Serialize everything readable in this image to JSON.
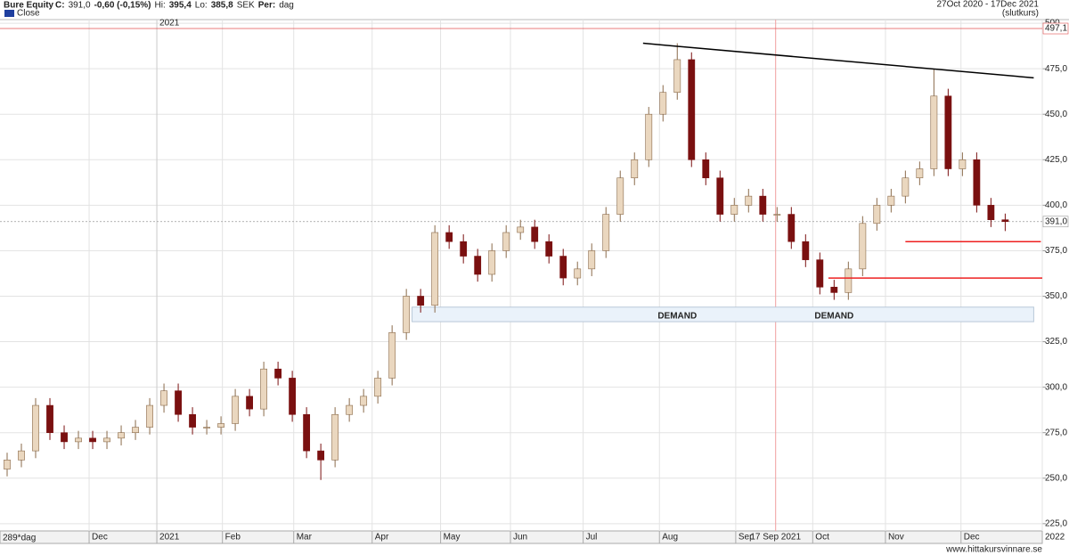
{
  "chart_data": {
    "type": "candlestick",
    "title": "Bure Equity",
    "header": [
      "C:",
      "391,0",
      "-0,60 (-0,15%)",
      "Hi:",
      "395,4",
      "Lo:",
      "385,8",
      "SEK",
      "Per:",
      "dag"
    ],
    "date_range": "27Oct 2020 - 17Dec 2021",
    "price_type": "(slutkurs)",
    "period_label": "289*dag",
    "footer": "www.hittakursvinnare.se",
    "up_color": "#ead7bf",
    "down_color": "#7a1010",
    "categories": [
      null,
      null,
      null,
      null,
      null,
      null,
      null,
      null,
      null,
      null,
      null,
      null,
      null,
      null,
      null,
      null,
      null,
      null,
      null,
      null,
      null,
      null,
      null,
      null,
      null,
      null,
      null,
      null,
      null,
      null,
      null,
      null,
      null,
      null,
      null,
      null,
      null,
      null,
      null,
      null,
      null,
      null,
      null,
      null,
      null,
      null,
      null,
      null,
      null,
      null,
      null,
      null,
      null,
      null,
      null,
      null,
      null,
      null,
      null,
      null,
      null,
      null,
      null,
      null,
      null,
      null,
      null,
      null,
      null,
      null,
      null
    ],
    "series": [
      {
        "name": "Close",
        "color": "#1f3f9f",
        "open": [
          255,
          260,
          265,
          290,
          275,
          270,
          272,
          270,
          272,
          275,
          278,
          290,
          298,
          285,
          278,
          278,
          280,
          295,
          288,
          310,
          305,
          285,
          265,
          260,
          285,
          290,
          295,
          305,
          330,
          350,
          345,
          385,
          380,
          372,
          362,
          375,
          385,
          388,
          380,
          372,
          360,
          365,
          375,
          395,
          415,
          425,
          450,
          462,
          480,
          425,
          415,
          395,
          400,
          405,
          395,
          395,
          380,
          370,
          355,
          352,
          365,
          390,
          400,
          405,
          415,
          420,
          460,
          420,
          425,
          400,
          392
        ],
        "high": [
          264,
          269,
          294,
          294,
          279,
          276,
          276,
          276,
          279,
          282,
          294,
          302,
          302,
          289,
          282,
          284,
          299,
          299,
          314,
          314,
          309,
          289,
          269,
          289,
          294,
          299,
          309,
          334,
          354,
          354,
          389,
          389,
          384,
          376,
          379,
          389,
          392,
          392,
          384,
          376,
          369,
          379,
          399,
          419,
          429,
          454,
          466,
          489,
          484,
          429,
          419,
          404,
          409,
          409,
          399,
          399,
          384,
          374,
          359,
          369,
          394,
          404,
          409,
          419,
          424,
          475,
          464,
          429,
          429,
          404,
          395.4
        ],
        "low": [
          251,
          256,
          261,
          271,
          266,
          266,
          266,
          266,
          268,
          271,
          274,
          286,
          281,
          274,
          274,
          274,
          276,
          284,
          284,
          301,
          281,
          261,
          249,
          256,
          281,
          286,
          291,
          301,
          326,
          341,
          341,
          376,
          368,
          358,
          358,
          371,
          381,
          376,
          368,
          356,
          356,
          361,
          371,
          391,
          411,
          421,
          446,
          458,
          421,
          411,
          391,
          391,
          396,
          391,
          391,
          376,
          366,
          351,
          348,
          348,
          361,
          386,
          396,
          401,
          411,
          416,
          416,
          416,
          396,
          388,
          385.8
        ],
        "close": [
          260,
          265,
          290,
          275,
          270,
          272,
          270,
          272,
          275,
          278,
          290,
          298,
          285,
          278,
          278,
          280,
          295,
          288,
          310,
          305,
          285,
          265,
          260,
          285,
          290,
          295,
          305,
          330,
          350,
          345,
          385,
          380,
          372,
          362,
          375,
          385,
          388,
          380,
          372,
          360,
          365,
          375,
          395,
          415,
          425,
          450,
          462,
          480,
          425,
          415,
          395,
          400,
          405,
          395,
          395,
          380,
          370,
          355,
          352,
          365,
          390,
          400,
          405,
          415,
          420,
          460,
          420,
          425,
          400,
          392,
          391
        ]
      }
    ],
    "xlim": [
      -0.5,
      72.6
    ],
    "ylim": [
      221,
      502
    ],
    "yticks": [
      {
        "value": 225,
        "label": "225,0"
      },
      {
        "value": 250,
        "label": "250,0"
      },
      {
        "value": 275,
        "label": "275,0"
      },
      {
        "value": 300,
        "label": "300,0"
      },
      {
        "value": 325,
        "label": "325,0"
      },
      {
        "value": 350,
        "label": "350,0"
      },
      {
        "value": 375,
        "label": "375,0"
      },
      {
        "value": 400,
        "label": "400,0"
      },
      {
        "value": 425,
        "label": "425,0"
      },
      {
        "value": 450,
        "label": "450,0"
      },
      {
        "value": 475,
        "label": "475,0"
      },
      {
        "value": 500,
        "label": "500"
      }
    ],
    "xticks": [
      {
        "value": 5.75,
        "label": "Dec"
      },
      {
        "value": 10.5,
        "label": "2021"
      },
      {
        "value": 15.1,
        "label": "Feb"
      },
      {
        "value": 20.1,
        "label": "Mar"
      },
      {
        "value": 25.6,
        "label": "Apr"
      },
      {
        "value": 30.4,
        "label": "May"
      },
      {
        "value": 35.3,
        "label": "Jun"
      },
      {
        "value": 40.4,
        "label": "Jul"
      },
      {
        "value": 45.75,
        "label": "Aug"
      },
      {
        "value": 51.1,
        "label": "Sep"
      },
      {
        "value": 56.5,
        "label": "Oct"
      },
      {
        "value": 61.6,
        "label": "Nov"
      },
      {
        "value": 66.9,
        "label": "Dec"
      },
      {
        "value": 72.6,
        "label": "2022"
      }
    ],
    "grid": true,
    "hlines": [
      {
        "value": 497.1,
        "label": "497,1",
        "color": "#e05050"
      },
      {
        "value": 391,
        "label": "391,0",
        "color": "#999999"
      }
    ],
    "vlines": [
      {
        "value": 10.5,
        "label": "2021"
      },
      {
        "value": 53.9,
        "label": "17 Sep 2021"
      }
    ],
    "trendlines": [
      {
        "x": [
          44.6,
          72
        ],
        "y": [
          489,
          470
        ],
        "color": "#000000"
      },
      {
        "x": [
          63,
          72.5
        ],
        "y": [
          380,
          380
        ],
        "color": "#ee2020"
      },
      {
        "x": [
          57.6,
          72.6
        ],
        "y": [
          360,
          360
        ],
        "color": "#ee2020"
      }
    ],
    "zone": {
      "x": [
        28.4,
        72
      ],
      "y": [
        336,
        344
      ],
      "labels": [
        {
          "text": "DEMAND",
          "x": 47
        },
        {
          "text": "DEMAND",
          "x": 58
        }
      ]
    }
  }
}
